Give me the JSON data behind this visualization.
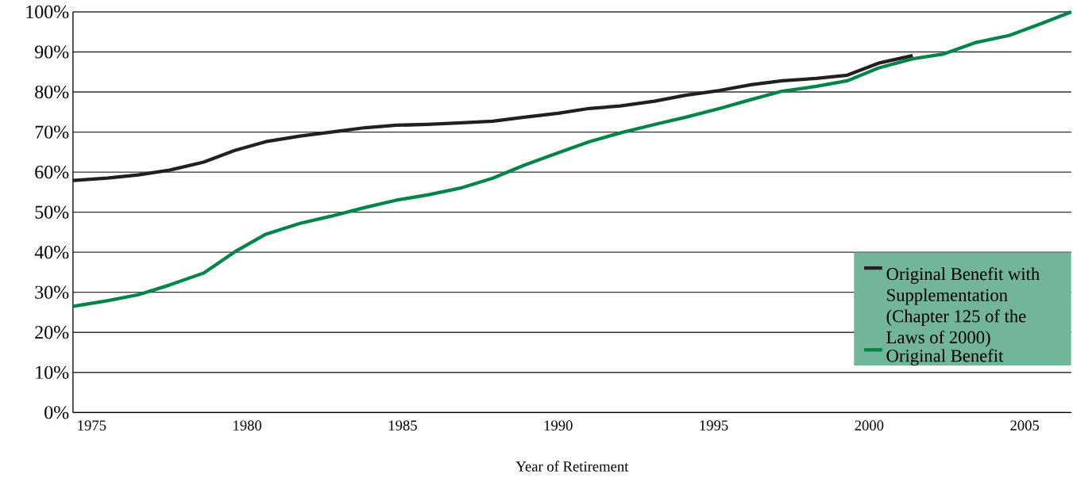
{
  "chart_data": {
    "type": "line",
    "xlabel": "Year of Retirement",
    "x": [
      1974.4,
      1975.5,
      1976.5,
      1977.5,
      1978.6,
      1979.6,
      1980.6,
      1981.7,
      1982.7,
      1983.8,
      1984.8,
      1985.8,
      1986.9,
      1987.9,
      1988.9,
      1990.0,
      1991.0,
      1992.0,
      1993.1,
      1994.1,
      1995.2,
      1996.2,
      1997.2,
      1998.3,
      1999.3,
      2000.3,
      2001.4,
      2002.4,
      2003.4,
      2004.5,
      2005.5,
      2006.5
    ],
    "series": [
      {
        "name": "Original Benefit with Supplementation (Chapter 125 of the Laws of 2000)",
        "color": "#231f20",
        "values": [
          57.9,
          58.5,
          59.3,
          60.5,
          62.5,
          65.4,
          67.6,
          69.0,
          70.0,
          71.1,
          71.7,
          71.9,
          72.3,
          72.7,
          73.7,
          74.7,
          75.9,
          76.5,
          77.7,
          79.2,
          80.4,
          81.8,
          82.8,
          83.4,
          84.2,
          87.2,
          89.1,
          null,
          null,
          null,
          null,
          null
        ]
      },
      {
        "name": "Original Benefit",
        "color": "#00844a",
        "values": [
          26.5,
          27.9,
          29.4,
          31.8,
          34.8,
          40.1,
          44.5,
          47.2,
          49.0,
          51.2,
          53.0,
          54.3,
          56.1,
          58.5,
          61.7,
          64.8,
          67.6,
          69.8,
          71.9,
          73.7,
          75.9,
          78.1,
          80.2,
          81.4,
          82.8,
          86.0,
          88.3,
          89.5,
          92.3,
          94.1,
          97.0,
          100
        ]
      }
    ],
    "xlim": [
      1974.4,
      2006.5
    ],
    "xticks": [
      1975,
      1980,
      1985,
      1990,
      1995,
      2000,
      2005
    ],
    "ylim": [
      0,
      100
    ],
    "yticks": [
      {
        "value": 0,
        "label": "0%"
      },
      {
        "value": 10,
        "label": "10%"
      },
      {
        "value": 20,
        "label": "20%"
      },
      {
        "value": 30,
        "label": "30%"
      },
      {
        "value": 40,
        "label": "40%"
      },
      {
        "value": 50,
        "label": "50%"
      },
      {
        "value": 60,
        "label": "60%"
      },
      {
        "value": 70,
        "label": "70%"
      },
      {
        "value": 80,
        "label": "80%"
      },
      {
        "value": 90,
        "label": "90%"
      },
      {
        "value": 100,
        "label": "100%"
      }
    ],
    "grid": "y",
    "legend": "right",
    "marker": "none",
    "line_style": "solid"
  }
}
